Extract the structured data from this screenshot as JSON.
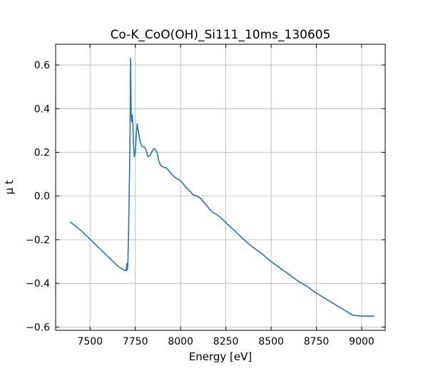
{
  "chart_data": {
    "type": "line",
    "title": "Co-K_CoO(OH)_Si111_10ms_130605",
    "xlabel": "Energy [eV]",
    "ylabel": "μ t",
    "xlim": [
      7310,
      9130
    ],
    "ylim": [
      -0.615,
      0.695
    ],
    "xticks": [
      7500,
      7750,
      8000,
      8250,
      8500,
      8750,
      9000
    ],
    "yticks": [
      -0.6,
      -0.4,
      -0.2,
      0.0,
      0.2,
      0.4,
      0.6
    ],
    "xtick_labels": [
      "7500",
      "7750",
      "8000",
      "8250",
      "8500",
      "8750",
      "9000"
    ],
    "ytick_labels": [
      "−0.6",
      "−0.4",
      "−0.2",
      "0.0",
      "0.2",
      "0.4",
      "0.6"
    ],
    "grid": true,
    "series": [
      {
        "color": "#1f77b4",
        "x": [
          7390,
          7450,
          7500,
          7550,
          7600,
          7650,
          7680,
          7695,
          7700,
          7703,
          7706,
          7709,
          7712,
          7715,
          7718,
          7721,
          7724,
          7727,
          7730,
          7733,
          7736,
          7740,
          7745,
          7750,
          7755,
          7760,
          7770,
          7775,
          7780,
          7785,
          7790,
          7800,
          7810,
          7820,
          7830,
          7840,
          7850,
          7860,
          7870,
          7880,
          7890,
          7900,
          7910,
          7920,
          7930,
          7950,
          7970,
          7990,
          8000,
          8020,
          8040,
          8055,
          8070,
          8090,
          8110,
          8130,
          8150,
          8170,
          8200,
          8230,
          8260,
          8300,
          8350,
          8400,
          8450,
          8500,
          8550,
          8600,
          8650,
          8700,
          8750,
          8800,
          8850,
          8900,
          8950,
          9000,
          9050,
          9070
        ],
        "y": [
          -0.118,
          -0.158,
          -0.198,
          -0.238,
          -0.278,
          -0.318,
          -0.336,
          -0.342,
          -0.338,
          -0.31,
          -0.34,
          -0.305,
          -0.2,
          -0.05,
          0.1,
          0.3,
          0.63,
          0.38,
          0.34,
          0.37,
          0.34,
          0.24,
          0.18,
          0.2,
          0.27,
          0.33,
          0.28,
          0.255,
          0.24,
          0.23,
          0.225,
          0.225,
          0.21,
          0.18,
          0.185,
          0.2,
          0.215,
          0.215,
          0.2,
          0.16,
          0.14,
          0.135,
          0.13,
          0.13,
          0.12,
          0.1,
          0.085,
          0.075,
          0.07,
          0.05,
          0.03,
          0.02,
          0.005,
          0.0,
          -0.01,
          -0.03,
          -0.05,
          -0.07,
          -0.085,
          -0.105,
          -0.13,
          -0.16,
          -0.2,
          -0.235,
          -0.265,
          -0.3,
          -0.33,
          -0.36,
          -0.39,
          -0.415,
          -0.445,
          -0.47,
          -0.495,
          -0.52,
          -0.545,
          -0.55,
          -0.55,
          -0.55
        ]
      }
    ]
  }
}
